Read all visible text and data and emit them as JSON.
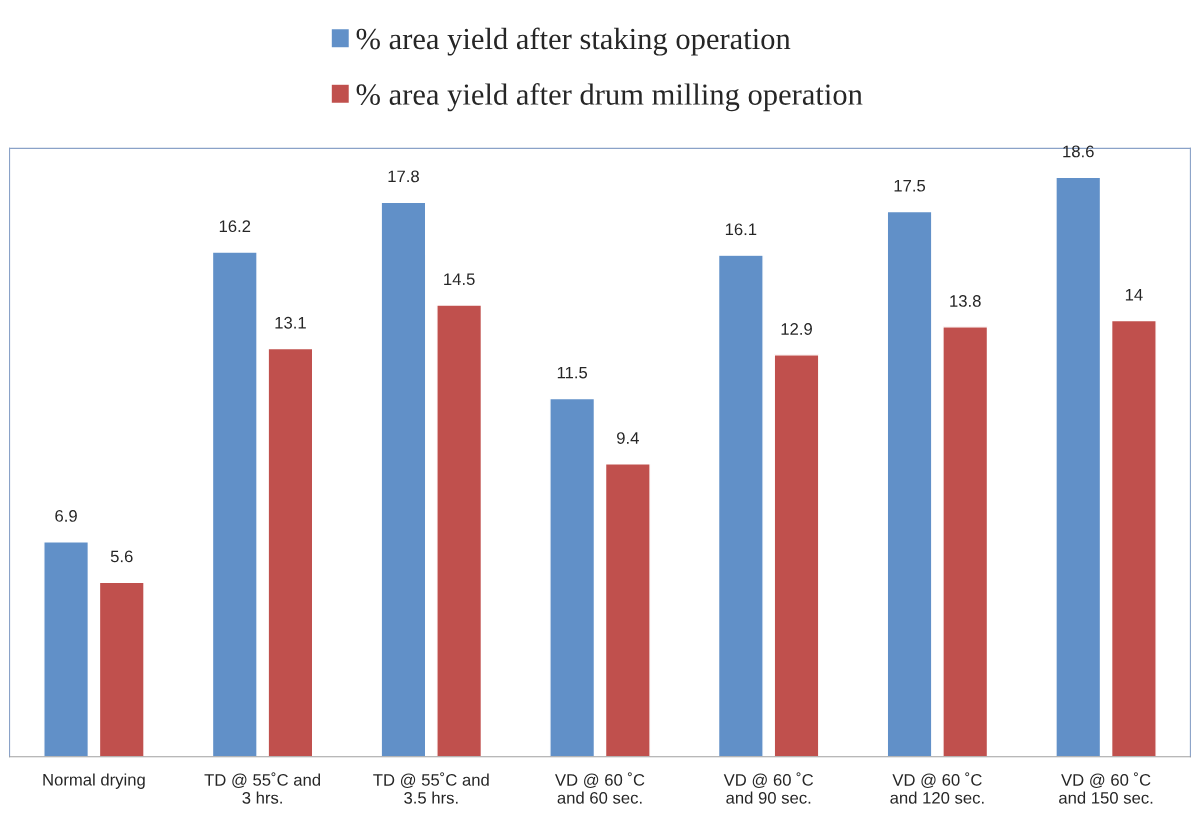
{
  "chart_data": {
    "type": "bar",
    "categories": [
      "Normal drying",
      "TD @ 55˚C and\n3 hrs.",
      "TD @ 55˚C and\n3.5 hrs.",
      "VD @ 60 ˚C\nand 60 sec.",
      "VD @ 60 ˚C\nand 90 sec.",
      "VD @ 60 ˚C\nand 120 sec.",
      "VD @ 60 ˚C\nand 150 sec."
    ],
    "series": [
      {
        "name": "% area yield after staking operation",
        "color": "#6190c8",
        "values": [
          6.9,
          16.2,
          17.8,
          11.5,
          16.1,
          17.5,
          18.6
        ]
      },
      {
        "name": "% area yield after drum milling operation",
        "color": "#c0504d",
        "values": [
          5.6,
          13.1,
          14.5,
          9.4,
          12.9,
          13.8,
          14
        ]
      }
    ],
    "data_labels": true,
    "grid": false,
    "legend": "top",
    "tick_labels": "x"
  }
}
